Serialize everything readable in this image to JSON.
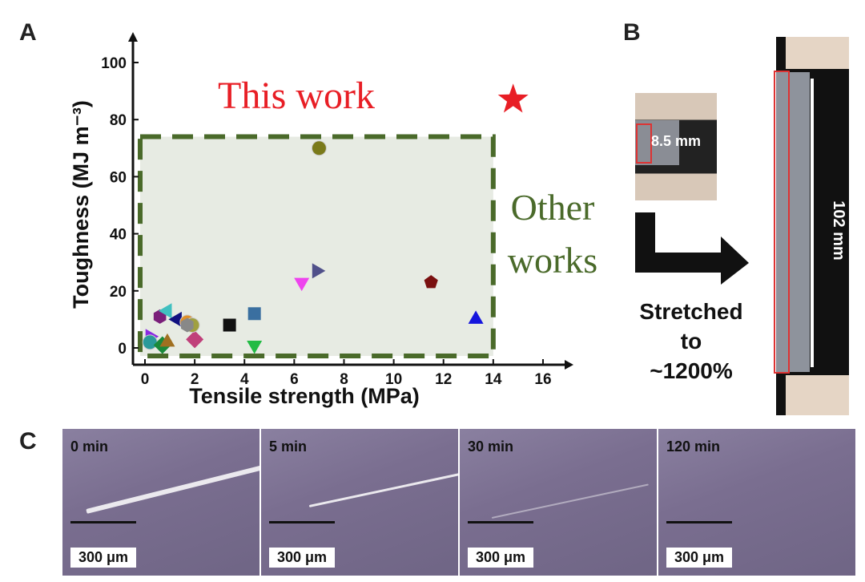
{
  "panels": {
    "a": "A",
    "b": "B",
    "c": "C"
  },
  "chart_data": {
    "type": "scatter",
    "xlabel": "Tensile strength (MPa)",
    "ylabel": "Toughness (MJ m⁻³)",
    "xlim": [
      0,
      16
    ],
    "ylim": [
      0,
      100
    ],
    "xticks": [
      "0",
      "2",
      "4",
      "6",
      "8",
      "10",
      "12",
      "14",
      "16"
    ],
    "yticks": [
      "0",
      "20",
      "40",
      "60",
      "80",
      "100"
    ],
    "annotations": {
      "this_work": "This work",
      "other_works_line1": "Other",
      "other_works_line2": "works"
    },
    "this_work": {
      "x": 14.8,
      "y": 87,
      "marker": "star",
      "color": "#e81e25"
    },
    "other_works": [
      {
        "x": 7.0,
        "y": 70,
        "marker": "circle",
        "color": "#7a7a1a"
      },
      {
        "x": 6.3,
        "y": 23,
        "marker": "tri-down",
        "color": "#ee44ee"
      },
      {
        "x": 6.9,
        "y": 27,
        "marker": "tri-right",
        "color": "#50508a"
      },
      {
        "x": 11.5,
        "y": 23,
        "marker": "pentagon",
        "color": "#7a1010"
      },
      {
        "x": 13.3,
        "y": 10,
        "marker": "tri-up",
        "color": "#1515dd"
      },
      {
        "x": 4.4,
        "y": 12,
        "marker": "square",
        "color": "#3a6fa0"
      },
      {
        "x": 3.4,
        "y": 8,
        "marker": "square",
        "color": "#111111"
      },
      {
        "x": 4.4,
        "y": 1,
        "marker": "tri-down",
        "color": "#22bb44"
      },
      {
        "x": 2.0,
        "y": 3,
        "marker": "diamond",
        "color": "#c0407a"
      },
      {
        "x": 0.6,
        "y": 11,
        "marker": "hexagon",
        "color": "#7a1f7a"
      },
      {
        "x": 0.9,
        "y": 13,
        "marker": "tri-left",
        "color": "#40c0c0"
      },
      {
        "x": 1.3,
        "y": 10,
        "marker": "tri-left",
        "color": "#101080"
      },
      {
        "x": 1.7,
        "y": 9,
        "marker": "circle",
        "color": "#e0902a"
      },
      {
        "x": 1.9,
        "y": 8,
        "marker": "circle",
        "color": "#a0a040"
      },
      {
        "x": 1.7,
        "y": 8,
        "marker": "hexagon",
        "color": "#888888"
      },
      {
        "x": 0.2,
        "y": 4,
        "marker": "tri-right",
        "color": "#8a2be2"
      },
      {
        "x": 0.2,
        "y": 2,
        "marker": "circle",
        "color": "#2a9a9a"
      },
      {
        "x": 0.7,
        "y": 1,
        "marker": "diamond",
        "color": "#1a8a3a"
      },
      {
        "x": 0.9,
        "y": 2,
        "marker": "tri-up",
        "color": "#a07020"
      }
    ],
    "region": {
      "x": [
        0,
        14
      ],
      "y": [
        0,
        74
      ],
      "color": "#4a6a2a"
    }
  },
  "panel_b": {
    "original_length": "8.5 mm",
    "stretched_length": "102 mm",
    "caption": [
      "Stretched",
      "to",
      "~1200%"
    ]
  },
  "panel_c": {
    "frames": [
      {
        "time": "0 min",
        "scale": "300 μm"
      },
      {
        "time": "5 min",
        "scale": "300 μm"
      },
      {
        "time": "30 min",
        "scale": "300 μm"
      },
      {
        "time": "120 min",
        "scale": "300 μm"
      }
    ]
  }
}
